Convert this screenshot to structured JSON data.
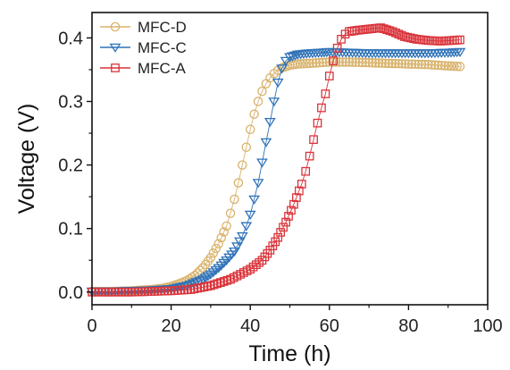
{
  "chart_data": {
    "type": "scatter",
    "xlabel": "Time (h)",
    "ylabel": "Voltage (V)",
    "xlim": [
      0,
      100
    ],
    "ylim": [
      -0.02,
      0.44
    ],
    "xticks": [
      0,
      20,
      40,
      60,
      80,
      100
    ],
    "yticks": [
      0.0,
      0.1,
      0.2,
      0.3,
      0.4
    ],
    "xtick_labels": [
      "0",
      "20",
      "40",
      "60",
      "80",
      "100"
    ],
    "ytick_labels": [
      "0.0",
      "0.1",
      "0.2",
      "0.3",
      "0.4"
    ],
    "grid": false,
    "legend_position": "top-left",
    "series": [
      {
        "name": "MFC-D",
        "marker": "circle",
        "color": "#D9B36C",
        "x": [
          0,
          5,
          10,
          15,
          18,
          20,
          22,
          24,
          26,
          28,
          30,
          32,
          34,
          35,
          36,
          37,
          38,
          39,
          40,
          41,
          42,
          43,
          44,
          45,
          46,
          47,
          48,
          50,
          52,
          55,
          60,
          65,
          70,
          75,
          80,
          85,
          90,
          93
        ],
        "values": [
          0.001,
          0.001,
          0.002,
          0.004,
          0.006,
          0.009,
          0.013,
          0.018,
          0.026,
          0.038,
          0.054,
          0.076,
          0.104,
          0.124,
          0.146,
          0.172,
          0.2,
          0.228,
          0.256,
          0.28,
          0.3,
          0.316,
          0.328,
          0.337,
          0.344,
          0.349,
          0.353,
          0.357,
          0.359,
          0.36,
          0.362,
          0.362,
          0.361,
          0.36,
          0.359,
          0.358,
          0.356,
          0.355
        ]
      },
      {
        "name": "MFC-C",
        "marker": "triangle-down",
        "color": "#2E72B8",
        "x": [
          0,
          5,
          10,
          15,
          20,
          24,
          28,
          30,
          32,
          34,
          36,
          38,
          39,
          40,
          41,
          42,
          43,
          44,
          45,
          46,
          47,
          48,
          49,
          50,
          52,
          55,
          58,
          60,
          65,
          70,
          75,
          80,
          85,
          90,
          93
        ],
        "values": [
          0.001,
          0.001,
          0.002,
          0.003,
          0.005,
          0.01,
          0.02,
          0.028,
          0.038,
          0.05,
          0.064,
          0.088,
          0.104,
          0.122,
          0.146,
          0.172,
          0.204,
          0.236,
          0.268,
          0.3,
          0.33,
          0.352,
          0.364,
          0.37,
          0.374,
          0.376,
          0.377,
          0.378,
          0.377,
          0.376,
          0.376,
          0.376,
          0.376,
          0.377,
          0.378
        ]
      },
      {
        "name": "MFC-A",
        "marker": "square",
        "color": "#D9343B",
        "x": [
          0,
          5,
          10,
          15,
          20,
          25,
          30,
          35,
          40,
          43,
          45,
          47,
          49,
          51,
          53,
          54,
          55,
          56,
          57,
          58,
          59,
          60,
          61,
          62,
          63,
          64,
          65,
          67,
          70,
          73,
          76,
          79,
          82,
          85,
          88,
          91,
          93
        ],
        "values": [
          0.0,
          0.0,
          0.0,
          0.001,
          0.002,
          0.004,
          0.01,
          0.02,
          0.036,
          0.05,
          0.066,
          0.086,
          0.11,
          0.138,
          0.17,
          0.19,
          0.214,
          0.24,
          0.266,
          0.29,
          0.312,
          0.34,
          0.364,
          0.384,
          0.398,
          0.406,
          0.41,
          0.412,
          0.414,
          0.416,
          0.41,
          0.402,
          0.398,
          0.396,
          0.395,
          0.396,
          0.397
        ]
      }
    ]
  }
}
